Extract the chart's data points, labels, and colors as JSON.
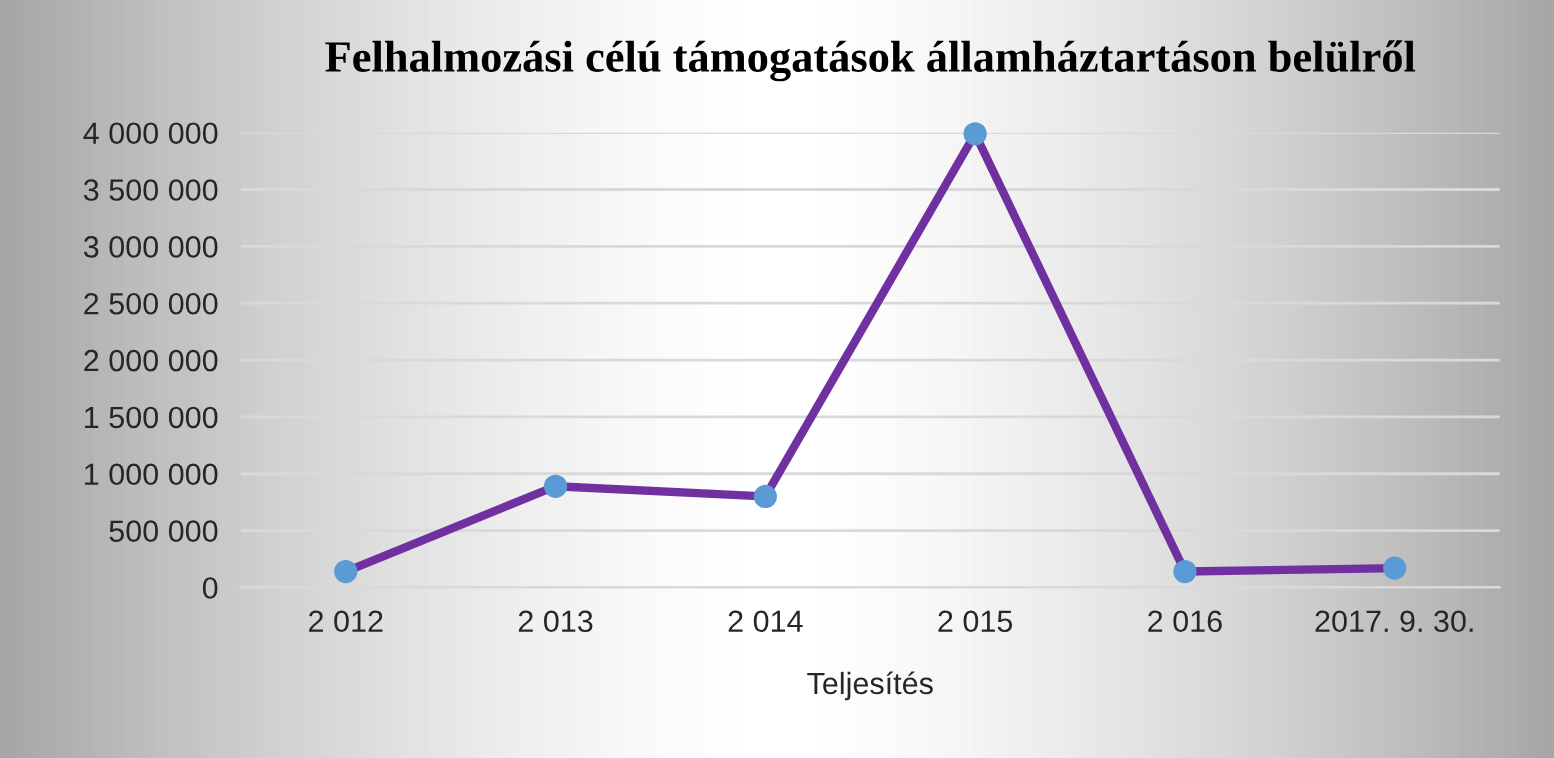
{
  "chart_data": {
    "type": "line",
    "title": "Felhalmozási célú támogatások államháztartáson belülről",
    "xlabel": "Teljesítés",
    "categories": [
      "2 012",
      "2 013",
      "2 014",
      "2 015",
      "2 016",
      "2017. 9. 30."
    ],
    "series": [
      {
        "color": "#7030a0",
        "colors": [
          "#5b9bd5",
          "#5b9bd5",
          "#5b9bd5",
          "#5b9bd5",
          "#5b9bd5",
          "#5b9bd5"
        ],
        "values": [
          140000,
          890000,
          800000,
          3990000,
          140000,
          170000
        ]
      }
    ],
    "ylim": [
      0,
      4000000
    ],
    "yticks": [
      {
        "value": 0,
        "label": "0"
      },
      {
        "value": 500000,
        "label": "500 000"
      },
      {
        "value": 1000000,
        "label": "1 000 000"
      },
      {
        "value": 1500000,
        "label": "1 500 000"
      },
      {
        "value": 2000000,
        "label": "2 000 000"
      },
      {
        "value": 2500000,
        "label": "2 500 000"
      },
      {
        "value": 3000000,
        "label": "3 000 000"
      },
      {
        "value": 3500000,
        "label": "3 500 000"
      },
      {
        "value": 4000000,
        "label": "4 000 000"
      }
    ],
    "grid": "y",
    "marker": "circle",
    "line_style": "solid",
    "legend": false
  }
}
